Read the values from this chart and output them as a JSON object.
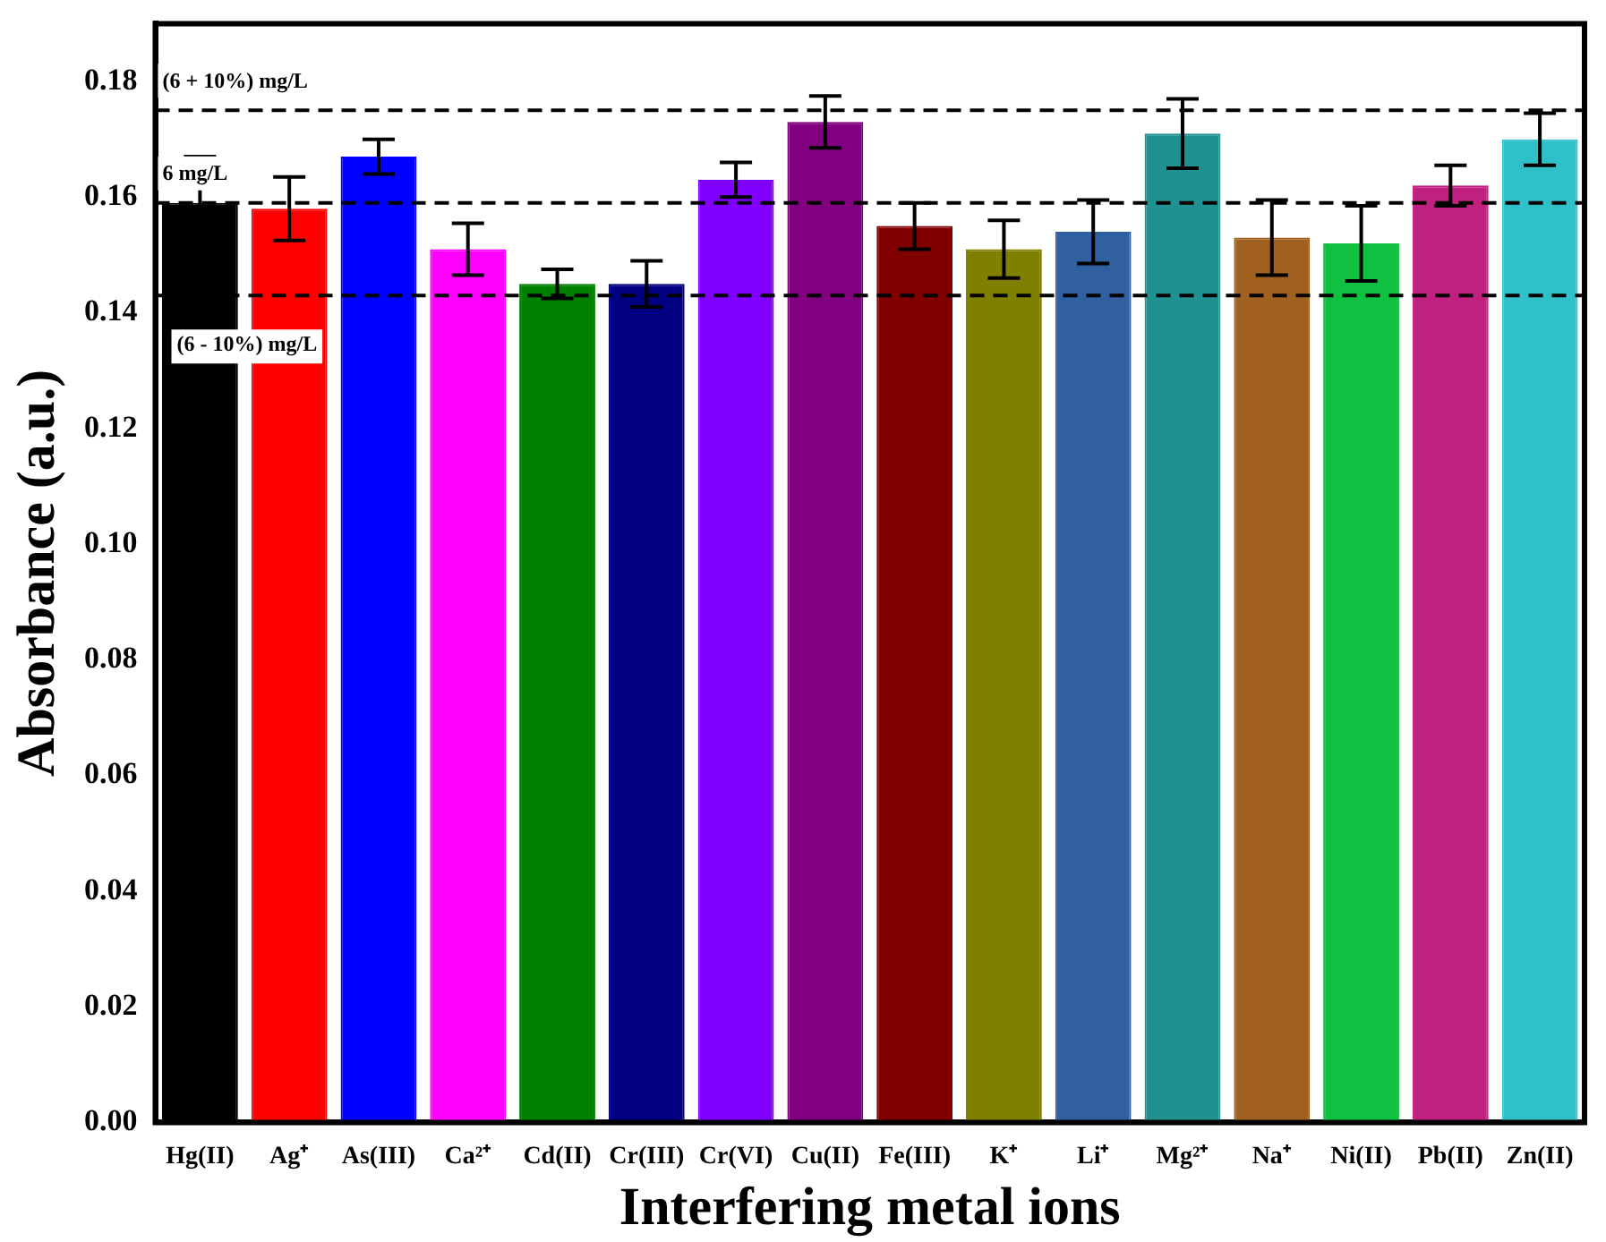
{
  "chart_data": {
    "type": "bar",
    "xlabel": "Interfering metal ions",
    "ylabel": "Absorbance (a.u.)",
    "categories": [
      "Hg(II)",
      "Ag⁺",
      "As(III)",
      "Ca²⁺",
      "Cd(II)",
      "Cr(III)",
      "Cr(VI)",
      "Cu(II)",
      "Fe(III)",
      "K⁺",
      "Li⁺",
      "Mg²⁺",
      "Na⁺",
      "Ni(II)",
      "Pb(II)",
      "Zn(II)"
    ],
    "values": [
      0.159,
      0.158,
      0.167,
      0.151,
      0.145,
      0.145,
      0.163,
      0.173,
      0.155,
      0.151,
      0.154,
      0.171,
      0.153,
      0.152,
      0.162,
      0.17
    ],
    "errors": [
      0.008,
      0.0055,
      0.003,
      0.0045,
      0.0025,
      0.004,
      0.003,
      0.0045,
      0.004,
      0.005,
      0.0055,
      0.006,
      0.0065,
      0.0065,
      0.0035,
      0.0045
    ],
    "colors": [
      "#000000",
      "#ff0000",
      "#0000ff",
      "#ff00ff",
      "#008000",
      "#000080",
      "#8000ff",
      "#800080",
      "#800000",
      "#808000",
      "#3060a0",
      "#209090",
      "#a06020",
      "#10c040",
      "#c02080",
      "#30c0c8"
    ],
    "ylim": [
      0,
      0.19
    ],
    "yticks": [
      {
        "value": 0,
        "label": "0.00"
      },
      0.02,
      0.04,
      0.06,
      0.08,
      {
        "value": 0.1,
        "label": "0.10"
      },
      0.12,
      0.14,
      0.16,
      0.18
    ],
    "grid": false,
    "legend": false,
    "ref_lines": [
      {
        "axis": "y",
        "value": 0.175,
        "label": "(6 + 10%) mg/L",
        "line_style": "dashed"
      },
      {
        "axis": "y",
        "value": 0.159,
        "label": "6 mg/L",
        "line_style": "dashed"
      },
      {
        "axis": "y",
        "value": 0.143,
        "label": "(6 - 10%) mg/L",
        "line_style": "dashed"
      }
    ]
  }
}
